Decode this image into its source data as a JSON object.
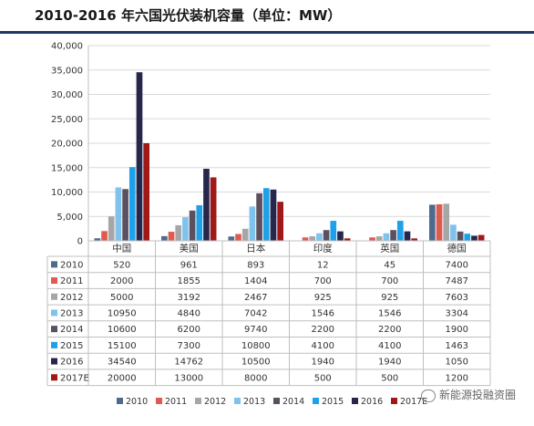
{
  "title": "2010-2016 年六国光伏装机容量（单位：MW）",
  "watermark": "新能源投融资圈",
  "chart_data": {
    "type": "bar",
    "categories": [
      "中国",
      "美国",
      "日本",
      "印度",
      "英国",
      "德国"
    ],
    "series": [
      {
        "name": "2010",
        "color": "#4e6a8c",
        "values": [
          520,
          961,
          893,
          12,
          45,
          7400
        ]
      },
      {
        "name": "2011",
        "color": "#e05a4f",
        "values": [
          2000,
          1855,
          1404,
          700,
          700,
          7487
        ]
      },
      {
        "name": "2012",
        "color": "#a6a6a6",
        "values": [
          5000,
          3192,
          2467,
          925,
          925,
          7603
        ]
      },
      {
        "name": "2013",
        "color": "#7fc3ec",
        "values": [
          10950,
          4840,
          7042,
          1546,
          1546,
          3304
        ]
      },
      {
        "name": "2014",
        "color": "#5a5060",
        "values": [
          10600,
          6200,
          9740,
          2200,
          2200,
          1900
        ]
      },
      {
        "name": "2015",
        "color": "#1ea1e8",
        "values": [
          15100,
          7300,
          10800,
          4100,
          4100,
          1463
        ]
      },
      {
        "name": "2016",
        "color": "#27274d",
        "values": [
          34540,
          14762,
          10500,
          1940,
          1940,
          1050
        ]
      },
      {
        "name": "2017E",
        "color": "#a01818",
        "values": [
          20000,
          13000,
          8000,
          500,
          500,
          1200
        ]
      }
    ],
    "ylim": [
      0,
      40000
    ],
    "yticks": [
      "0",
      "5,000",
      "10,000",
      "15,000",
      "20,000",
      "25,000",
      "30,000",
      "35,000",
      "40,000"
    ],
    "grid": true,
    "legend": "bottom",
    "data_table": true
  }
}
